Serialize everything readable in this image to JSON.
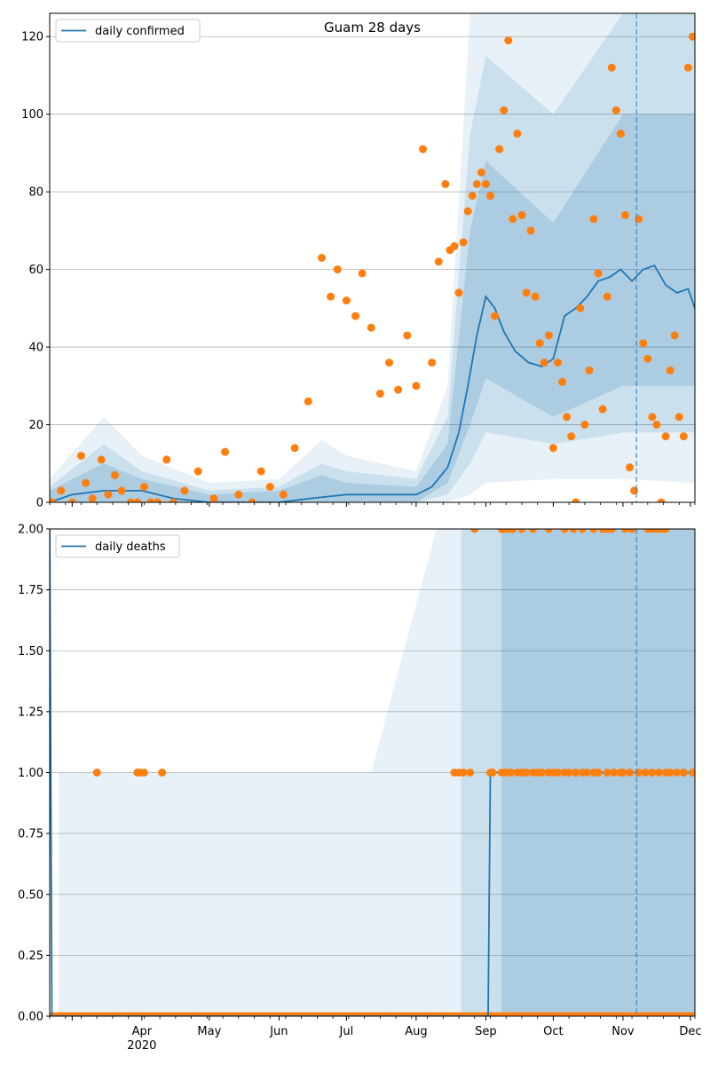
{
  "colors": {
    "line": "#1f77b4",
    "points": "#ff7f0e",
    "band": "#1f77b4",
    "grid": "#b0b0b0"
  },
  "chart_data": [
    {
      "type": "line",
      "title": "Guam 28 days",
      "legend": "daily confirmed",
      "legend_position": "top-left",
      "ylim": [
        0,
        126
      ],
      "y_ticks": [
        0,
        20,
        40,
        60,
        80,
        100,
        120
      ],
      "y_tick_labels": [
        "0",
        "20",
        "40",
        "60",
        "80",
        "100",
        "120"
      ],
      "grid": "y",
      "forecast_start": "2020-11-07",
      "series": [
        {
          "kind": "model",
          "x": [
            "2020-02-20",
            "2020-03-01",
            "2020-03-15",
            "2020-04-01",
            "2020-04-15",
            "2020-05-01",
            "2020-05-15",
            "2020-06-01",
            "2020-06-15",
            "2020-07-01",
            "2020-07-15",
            "2020-08-01",
            "2020-08-08",
            "2020-08-15",
            "2020-08-20",
            "2020-08-24",
            "2020-08-28",
            "2020-09-01",
            "2020-09-05",
            "2020-09-09",
            "2020-09-14",
            "2020-09-20",
            "2020-09-26",
            "2020-10-01",
            "2020-10-06",
            "2020-10-11",
            "2020-10-16",
            "2020-10-21",
            "2020-10-26",
            "2020-10-31",
            "2020-11-05",
            "2020-11-10",
            "2020-11-15",
            "2020-11-20",
            "2020-11-25",
            "2020-11-30",
            "2020-12-03"
          ],
          "values": [
            0,
            2,
            3,
            3,
            1,
            0,
            0,
            0,
            1,
            2,
            2,
            2,
            4,
            9,
            18,
            30,
            43,
            53,
            50,
            44,
            39,
            36,
            35,
            37,
            48,
            50,
            53,
            57,
            58,
            60,
            57,
            60,
            61,
            56,
            54,
            55,
            50
          ]
        },
        {
          "kind": "observed",
          "x": [
            "2020-02-21",
            "2020-02-25",
            "2020-03-01",
            "2020-03-05",
            "2020-03-07",
            "2020-03-10",
            "2020-03-14",
            "2020-03-17",
            "2020-03-20",
            "2020-03-23",
            "2020-03-27",
            "2020-03-30",
            "2020-04-02",
            "2020-04-05",
            "2020-04-08",
            "2020-04-12",
            "2020-04-15",
            "2020-04-20",
            "2020-04-26",
            "2020-05-03",
            "2020-05-08",
            "2020-05-14",
            "2020-05-20",
            "2020-05-24",
            "2020-05-28",
            "2020-06-03",
            "2020-06-08",
            "2020-06-14",
            "2020-06-20",
            "2020-06-24",
            "2020-06-27",
            "2020-07-01",
            "2020-07-05",
            "2020-07-08",
            "2020-07-12",
            "2020-07-16",
            "2020-07-20",
            "2020-07-24",
            "2020-07-28",
            "2020-08-01",
            "2020-08-04",
            "2020-08-08",
            "2020-08-11",
            "2020-08-14",
            "2020-08-16",
            "2020-08-18",
            "2020-08-20",
            "2020-08-22",
            "2020-08-24",
            "2020-08-26",
            "2020-08-28",
            "2020-08-30",
            "2020-09-01",
            "2020-09-03",
            "2020-09-05",
            "2020-09-07",
            "2020-09-09",
            "2020-09-11",
            "2020-09-13",
            "2020-09-15",
            "2020-09-17",
            "2020-09-19",
            "2020-09-21",
            "2020-09-23",
            "2020-09-25",
            "2020-09-27",
            "2020-09-29",
            "2020-10-01",
            "2020-10-03",
            "2020-10-05",
            "2020-10-07",
            "2020-10-09",
            "2020-10-11",
            "2020-10-13",
            "2020-10-15",
            "2020-10-17",
            "2020-10-19",
            "2020-10-21",
            "2020-10-23",
            "2020-10-25",
            "2020-10-27",
            "2020-10-29",
            "2020-10-31",
            "2020-11-02",
            "2020-11-04",
            "2020-11-06",
            "2020-11-08",
            "2020-11-10",
            "2020-11-12",
            "2020-11-14",
            "2020-11-16",
            "2020-11-18",
            "2020-11-20",
            "2020-11-22",
            "2020-11-24",
            "2020-11-26",
            "2020-11-28",
            "2020-11-30",
            "2020-12-02"
          ],
          "values": [
            0,
            3,
            0,
            12,
            5,
            1,
            11,
            2,
            7,
            3,
            0,
            0,
            4,
            0,
            0,
            11,
            0,
            3,
            8,
            1,
            13,
            2,
            0,
            8,
            4,
            2,
            14,
            26,
            63,
            53,
            60,
            52,
            48,
            59,
            45,
            28,
            36,
            29,
            43,
            30,
            91,
            36,
            62,
            82,
            65,
            66,
            54,
            67,
            75,
            79,
            82,
            85,
            82,
            79,
            48,
            91,
            101,
            119,
            73,
            95,
            74,
            54,
            70,
            53,
            41,
            36,
            43,
            14,
            36,
            31,
            22,
            17,
            0,
            50,
            20,
            34,
            73,
            59,
            24,
            53,
            112,
            101,
            95,
            74,
            9,
            3,
            73,
            41,
            37,
            22,
            20,
            0,
            17,
            34,
            43,
            22,
            17,
            112,
            120
          ]
        }
      ],
      "bands": [
        {
          "level": "outer",
          "x": [
            "2020-02-20",
            "2020-03-15",
            "2020-04-01",
            "2020-05-01",
            "2020-06-01",
            "2020-06-20",
            "2020-07-01",
            "2020-08-01",
            "2020-08-15",
            "2020-08-25",
            "2020-09-01",
            "2020-10-01",
            "2020-11-01",
            "2020-12-03"
          ],
          "lower": [
            0,
            0,
            0,
            0,
            0,
            0,
            0,
            0,
            0,
            2,
            5,
            6,
            6,
            5
          ],
          "upper": [
            6,
            22,
            12,
            5,
            6,
            16,
            12,
            8,
            30,
            126,
            126,
            126,
            126,
            126
          ]
        },
        {
          "level": "middle",
          "x": [
            "2020-02-20",
            "2020-03-15",
            "2020-04-01",
            "2020-05-01",
            "2020-06-01",
            "2020-06-20",
            "2020-07-01",
            "2020-08-01",
            "2020-08-15",
            "2020-08-25",
            "2020-09-01",
            "2020-10-01",
            "2020-11-01",
            "2020-12-03"
          ],
          "lower": [
            0,
            0,
            0,
            0,
            0,
            0,
            0,
            0,
            2,
            10,
            18,
            15,
            18,
            18
          ],
          "upper": [
            4,
            15,
            8,
            3,
            4,
            10,
            8,
            6,
            22,
            95,
            115,
            100,
            126,
            126
          ]
        },
        {
          "level": "inner",
          "x": [
            "2020-02-20",
            "2020-03-15",
            "2020-04-01",
            "2020-05-01",
            "2020-06-01",
            "2020-06-20",
            "2020-07-01",
            "2020-08-01",
            "2020-08-15",
            "2020-08-25",
            "2020-09-01",
            "2020-10-01",
            "2020-11-01",
            "2020-12-03"
          ],
          "lower": [
            0,
            0,
            0,
            0,
            0,
            0,
            0,
            0,
            5,
            20,
            32,
            22,
            30,
            30
          ],
          "upper": [
            3,
            10,
            6,
            2,
            3,
            7,
            5,
            4,
            15,
            70,
            88,
            72,
            100,
            100
          ]
        }
      ]
    },
    {
      "type": "line",
      "title": "",
      "legend": "daily deaths",
      "legend_position": "top-left",
      "ylim": [
        0,
        2
      ],
      "y_ticks": [
        0,
        0.25,
        0.5,
        0.75,
        1.0,
        1.25,
        1.5,
        1.75,
        2.0
      ],
      "y_tick_labels": [
        "0.00",
        "0.25",
        "0.50",
        "0.75",
        "1.00",
        "1.25",
        "1.50",
        "1.75",
        "2.00"
      ],
      "grid": "y",
      "forecast_start": "2020-11-07",
      "x_ticks": [
        "2020-04-01",
        "2020-05-01",
        "2020-06-01",
        "2020-07-01",
        "2020-08-01",
        "2020-09-01",
        "2020-10-01",
        "2020-11-01",
        "2020-12-01"
      ],
      "x_tick_labels": [
        "Apr",
        "May",
        "Jun",
        "Jul",
        "Aug",
        "Sep",
        "Oct",
        "Nov",
        "Dec"
      ],
      "x_year_label": "2020",
      "series": [
        {
          "kind": "model",
          "x": [
            "2020-02-20",
            "2020-02-21",
            "2020-09-02",
            "2020-09-03",
            "2020-12-03"
          ],
          "values": [
            2,
            0,
            0,
            1,
            1
          ]
        },
        {
          "kind": "observed",
          "x": [
            "2020-03-12",
            "2020-03-30",
            "2020-03-31",
            "2020-04-02",
            "2020-04-10",
            "2020-08-18",
            "2020-08-20",
            "2020-08-22",
            "2020-08-25",
            "2020-09-03",
            "2020-09-04",
            "2020-09-08",
            "2020-09-10",
            "2020-09-12",
            "2020-09-15",
            "2020-09-17",
            "2020-09-19",
            "2020-09-22",
            "2020-09-24",
            "2020-09-26",
            "2020-09-29",
            "2020-10-01",
            "2020-10-03",
            "2020-10-06",
            "2020-10-08",
            "2020-10-11",
            "2020-10-14",
            "2020-10-16",
            "2020-10-19",
            "2020-10-21",
            "2020-10-25",
            "2020-10-28",
            "2020-10-31",
            "2020-11-01",
            "2020-11-04",
            "2020-11-08",
            "2020-11-11",
            "2020-11-14",
            "2020-11-17",
            "2020-11-20",
            "2020-11-22",
            "2020-11-25",
            "2020-11-28",
            "2020-12-02",
            "2020-08-27",
            "2020-09-08",
            "2020-09-09",
            "2020-09-11",
            "2020-09-13",
            "2020-09-17",
            "2020-09-22",
            "2020-09-29",
            "2020-10-06",
            "2020-10-10",
            "2020-10-14",
            "2020-10-19",
            "2020-10-23",
            "2020-10-25",
            "2020-10-27",
            "2020-11-02",
            "2020-11-05",
            "2020-11-12",
            "2020-11-14",
            "2020-11-16",
            "2020-11-18",
            "2020-11-20"
          ],
          "values": [
            1,
            1,
            1,
            1,
            1,
            1,
            1,
            1,
            1,
            1,
            1,
            1,
            1,
            1,
            1,
            1,
            1,
            1,
            1,
            1,
            1,
            1,
            1,
            1,
            1,
            1,
            1,
            1,
            1,
            1,
            1,
            1,
            1,
            1,
            1,
            1,
            1,
            1,
            1,
            1,
            1,
            1,
            1,
            1,
            2,
            2,
            2,
            2,
            2,
            2,
            2,
            2,
            2,
            2,
            2,
            2,
            2,
            2,
            2,
            2,
            2,
            2,
            2,
            2,
            2,
            2
          ]
        }
      ],
      "bands": [
        {
          "level": "outer",
          "x": [
            "2020-02-24",
            "2020-05-04",
            "2020-06-19",
            "2020-07-12",
            "2020-08-10",
            "2020-12-03"
          ],
          "lower": [
            0,
            0,
            0,
            0,
            0,
            0
          ],
          "upper": [
            1,
            1,
            1,
            1,
            2,
            2
          ]
        },
        {
          "level": "middle",
          "x": [
            "2020-08-21",
            "2020-12-03"
          ],
          "lower": [
            0,
            0
          ],
          "upper": [
            2,
            2
          ]
        },
        {
          "level": "inner",
          "x": [
            "2020-09-08",
            "2020-12-03"
          ],
          "lower": [
            0,
            0
          ],
          "upper": [
            2,
            2
          ]
        }
      ],
      "zero_observed_range": [
        "2020-02-20",
        "2020-12-03"
      ]
    }
  ]
}
